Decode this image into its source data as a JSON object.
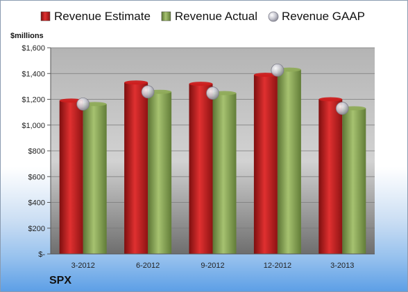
{
  "chart_data": {
    "type": "bar",
    "categories": [
      "3-2012",
      "6-2012",
      "9-2012",
      "12-2012",
      "3-2013"
    ],
    "series": [
      {
        "name": "Revenue Estimate",
        "kind": "bar",
        "color": "#cc1f1f",
        "values": [
          1190,
          1330,
          1320,
          1390,
          1200
        ]
      },
      {
        "name": "Revenue Actual",
        "kind": "bar",
        "color": "#8fab5a",
        "values": [
          1163,
          1258,
          1248,
          1430,
          1130
        ]
      },
      {
        "name": "Revenue GAAP",
        "kind": "marker",
        "color": "#b8b8c4",
        "values": [
          1163,
          1258,
          1248,
          1426,
          1130
        ]
      }
    ],
    "ylabel": "$millions",
    "ylim": [
      0,
      1600
    ],
    "yticks": [
      0,
      200,
      400,
      600,
      800,
      1000,
      1200,
      1400,
      1600
    ],
    "ytick_labels": [
      "$-",
      "$200",
      "$400",
      "$600",
      "$800",
      "$1,000",
      "$1,200",
      "$1,400",
      "$1,600"
    ],
    "grid": true,
    "legend": "top"
  },
  "footer": {
    "ticker": "SPX"
  }
}
